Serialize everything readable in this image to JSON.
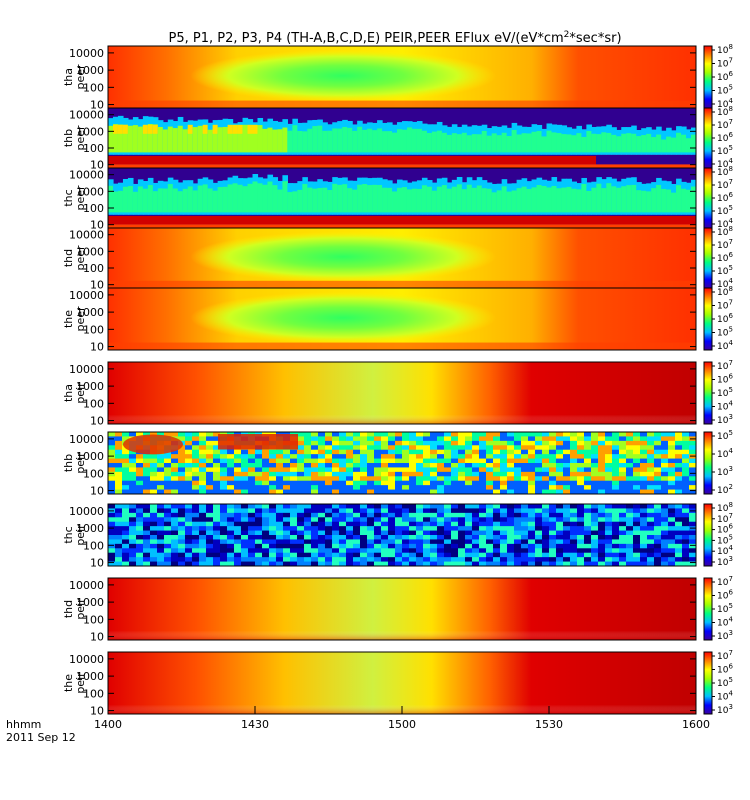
{
  "chart_data": {
    "type": "heatmap",
    "title": "P5, P1, P2, P3, P4 (TH-A,B,C,D,E) PEIR,PEER EFlux eV/(eV*cm",
    "title_sup": "2",
    "title_end": "*sec*sr)",
    "x_axis": {
      "ticks": [
        "1400",
        "1430",
        "1500",
        "1530",
        "1600"
      ],
      "label_line1": "hhmm",
      "label_line2": "2011 Sep 12"
    },
    "y_axis": {
      "scale": "log",
      "ticks": [
        "10",
        "100",
        "1000",
        "10000"
      ]
    },
    "panels": [
      {
        "probe": "tha",
        "product": "peer",
        "ylabel_top": "tha",
        "ylabel_bottom": "peer",
        "cbar": [
          {
            "base": "10",
            "exp": "8"
          },
          {
            "base": "10",
            "exp": "7"
          },
          {
            "base": "10",
            "exp": "6"
          },
          {
            "base": "10",
            "exp": "5"
          },
          {
            "base": "10",
            "exp": "4"
          }
        ],
        "pattern": "smooth-green-center"
      },
      {
        "probe": "thb",
        "product": "peer",
        "ylabel_top": "thb",
        "ylabel_bottom": "peer",
        "cbar": [
          {
            "base": "10",
            "exp": "8"
          },
          {
            "base": "10",
            "exp": "7"
          },
          {
            "base": "10",
            "exp": "6"
          },
          {
            "base": "10",
            "exp": "5"
          },
          {
            "base": "10",
            "exp": "4"
          }
        ],
        "pattern": "banded-structured"
      },
      {
        "probe": "thc",
        "product": "peer",
        "ylabel_top": "thc",
        "ylabel_bottom": "peer",
        "cbar": [
          {
            "base": "10",
            "exp": "8"
          },
          {
            "base": "10",
            "exp": "7"
          },
          {
            "base": "10",
            "exp": "6"
          },
          {
            "base": "10",
            "exp": "5"
          },
          {
            "base": "10",
            "exp": "4"
          }
        ],
        "pattern": "banded-low"
      },
      {
        "probe": "thd",
        "product": "peer",
        "ylabel_top": "thd",
        "ylabel_bottom": "peer",
        "cbar": [
          {
            "base": "10",
            "exp": "8"
          },
          {
            "base": "10",
            "exp": "7"
          },
          {
            "base": "10",
            "exp": "6"
          },
          {
            "base": "10",
            "exp": "5"
          },
          {
            "base": "10",
            "exp": "4"
          }
        ],
        "pattern": "smooth-green-center"
      },
      {
        "probe": "the",
        "product": "peer",
        "ylabel_top": "the",
        "ylabel_bottom": "peer",
        "cbar": [
          {
            "base": "10",
            "exp": "8"
          },
          {
            "base": "10",
            "exp": "7"
          },
          {
            "base": "10",
            "exp": "6"
          },
          {
            "base": "10",
            "exp": "5"
          },
          {
            "base": "10",
            "exp": "4"
          }
        ],
        "pattern": "smooth-green-center"
      },
      {
        "probe": "tha",
        "product": "peir",
        "ylabel_top": "tha",
        "ylabel_bottom": "peir",
        "cbar": [
          {
            "base": "10",
            "exp": "7"
          },
          {
            "base": "10",
            "exp": "6"
          },
          {
            "base": "10",
            "exp": "5"
          },
          {
            "base": "10",
            "exp": "4"
          },
          {
            "base": "10",
            "exp": "3"
          }
        ],
        "pattern": "ion-smooth"
      },
      {
        "probe": "thb",
        "product": "peir",
        "ylabel_top": "thb",
        "ylabel_bottom": "peir",
        "cbar": [
          {
            "base": "10",
            "exp": "5"
          },
          {
            "base": "10",
            "exp": "4"
          },
          {
            "base": "10",
            "exp": "3"
          },
          {
            "base": "10",
            "exp": "2"
          }
        ],
        "pattern": "ion-noisy"
      },
      {
        "probe": "thc",
        "product": "peir",
        "ylabel_top": "thc",
        "ylabel_bottom": "peir",
        "cbar": [
          {
            "base": "10",
            "exp": "8"
          },
          {
            "base": "10",
            "exp": "7"
          },
          {
            "base": "10",
            "exp": "6"
          },
          {
            "base": "10",
            "exp": "5"
          },
          {
            "base": "10",
            "exp": "4"
          },
          {
            "base": "10",
            "exp": "3"
          }
        ],
        "pattern": "ion-blue-noise"
      },
      {
        "probe": "thd",
        "product": "peir",
        "ylabel_top": "thd",
        "ylabel_bottom": "peir",
        "cbar": [
          {
            "base": "10",
            "exp": "7"
          },
          {
            "base": "10",
            "exp": "6"
          },
          {
            "base": "10",
            "exp": "5"
          },
          {
            "base": "10",
            "exp": "4"
          },
          {
            "base": "10",
            "exp": "3"
          }
        ],
        "pattern": "ion-smooth"
      },
      {
        "probe": "the",
        "product": "peir",
        "ylabel_top": "the",
        "ylabel_bottom": "peir",
        "cbar": [
          {
            "base": "10",
            "exp": "7"
          },
          {
            "base": "10",
            "exp": "6"
          },
          {
            "base": "10",
            "exp": "5"
          },
          {
            "base": "10",
            "exp": "4"
          },
          {
            "base": "10",
            "exp": "3"
          }
        ],
        "pattern": "ion-smooth"
      }
    ],
    "colormap": [
      "#3a00a0",
      "#0000ff",
      "#00c0ff",
      "#00ff80",
      "#a0ff00",
      "#ffff00",
      "#ff8000",
      "#ff0000"
    ]
  }
}
